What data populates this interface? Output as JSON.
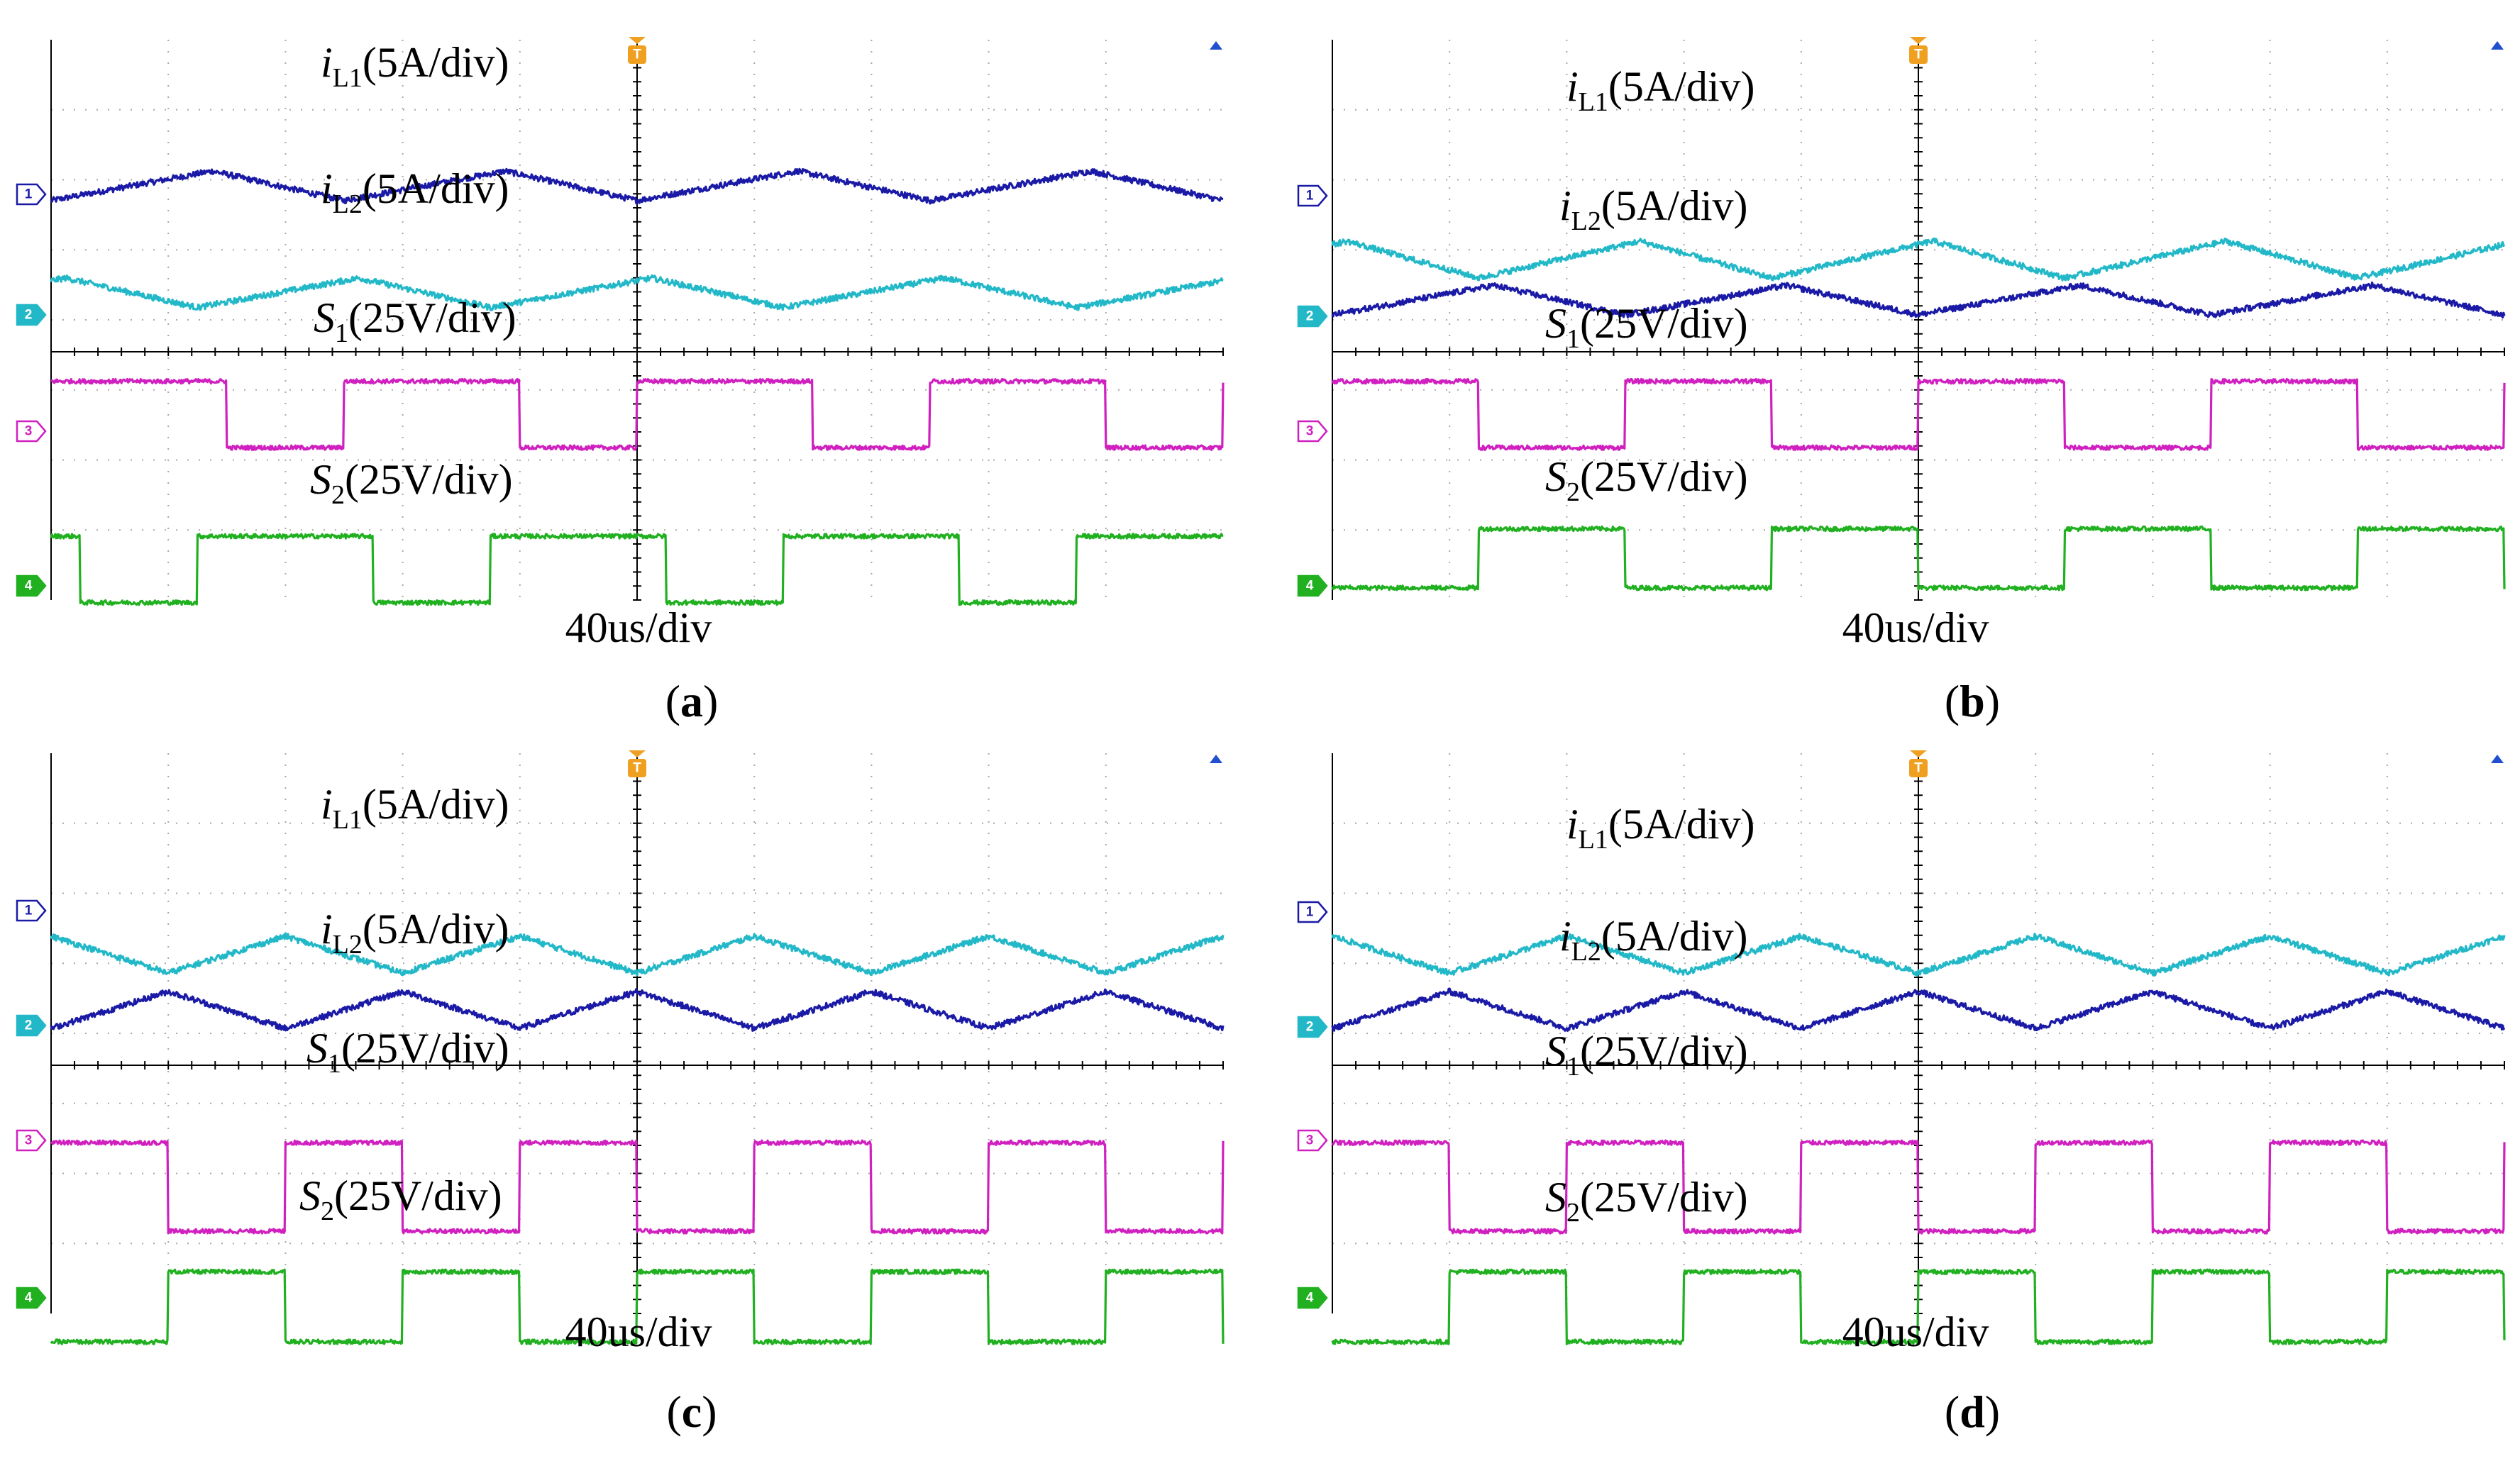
{
  "figure_labels": [
    "(a)",
    "(b)",
    "(c)",
    "(d)"
  ],
  "colors": {
    "ch1": "#1a1aa6",
    "ch2": "#22b8c8",
    "ch3": "#d020c0",
    "ch4": "#20b020",
    "grid": "#a8a8a8",
    "frame": "#000000",
    "trigger": "#f0a020",
    "marker": "#2050d0"
  },
  "icons": {
    "trigger": "trigger-marker-icon",
    "marker": "time-marker-icon"
  },
  "chart_data": [
    {
      "type": "line",
      "panel": "a",
      "title": "(a)",
      "xlabel": "40us/div",
      "time_per_div_us": 40,
      "xlim": [
        0,
        400
      ],
      "grid": true,
      "channel_badges": [
        "1",
        "2",
        "3",
        "4"
      ],
      "series": [
        {
          "channel": 1,
          "label_main": "i",
          "label_sub": "L1",
          "label_tail": "(5A/div)",
          "waveform": "triangle",
          "period_us": 100,
          "duty": 0.55,
          "baseline_div": 4.5,
          "amplitude_div": 0.4,
          "phase": 0.0
        },
        {
          "channel": 2,
          "label_main": "i",
          "label_sub": "L2",
          "label_tail": "(5A/div)",
          "waveform": "triangle",
          "period_us": 100,
          "duty": 0.55,
          "baseline_div": 1.6,
          "amplitude_div": 0.4,
          "phase": 0.5
        },
        {
          "channel": 3,
          "label_main": "S",
          "label_sub": "1",
          "label_tail": "(25V/div)",
          "waveform": "square",
          "period_us": 100,
          "duty": 0.6,
          "low_div": -2.6,
          "high_div": -0.8,
          "phase": 0.0
        },
        {
          "channel": 4,
          "label_main": "S",
          "label_sub": "2",
          "label_tail": "(25V/div)",
          "waveform": "square",
          "period_us": 100,
          "duty": 0.6,
          "low_div": -6.8,
          "high_div": -5.0,
          "phase": 0.5
        }
      ]
    },
    {
      "type": "line",
      "panel": "b",
      "title": "(b)",
      "xlabel": "40us/div",
      "time_per_div_us": 40,
      "xlim": [
        0,
        400
      ],
      "grid": true,
      "channel_badges": [
        "1",
        "2",
        "3",
        "4"
      ],
      "series": [
        {
          "channel": 1,
          "label_main": "i",
          "label_sub": "L1",
          "label_tail": "(5A/div)",
          "waveform": "triangle",
          "period_us": 100,
          "duty": 0.55,
          "baseline_div": 1.4,
          "amplitude_div": 0.4,
          "phase": 0.0
        },
        {
          "channel": 2,
          "label_main": "i",
          "label_sub": "L2",
          "label_tail": "(5A/div)",
          "waveform": "triangle",
          "period_us": 100,
          "duty": 0.55,
          "baseline_div": 2.5,
          "amplitude_div": 0.5,
          "phase": 0.5
        },
        {
          "channel": 3,
          "label_main": "S",
          "label_sub": "1",
          "label_tail": "(25V/div)",
          "waveform": "square",
          "period_us": 100,
          "duty": 0.5,
          "low_div": -2.6,
          "high_div": -0.8,
          "phase": 0.0
        },
        {
          "channel": 4,
          "label_main": "S",
          "label_sub": "2",
          "label_tail": "(25V/div)",
          "waveform": "square",
          "period_us": 100,
          "duty": 0.5,
          "low_div": -6.4,
          "high_div": -4.8,
          "phase": 0.5
        }
      ]
    },
    {
      "type": "line",
      "panel": "c",
      "title": "(c)",
      "xlabel": "40us/div",
      "time_per_div_us": 40,
      "xlim": [
        0,
        400
      ],
      "grid": true,
      "channel_badges": [
        "1",
        "2",
        "3",
        "4"
      ],
      "series": [
        {
          "channel": 1,
          "label_main": "i",
          "label_sub": "L1",
          "label_tail": "(5A/div)",
          "waveform": "triangle",
          "period_us": 80,
          "duty": 0.5,
          "baseline_div": 1.5,
          "amplitude_div": 0.5,
          "phase": 0.0
        },
        {
          "channel": 2,
          "label_main": "i",
          "label_sub": "L2",
          "label_tail": "(5A/div)",
          "waveform": "triangle",
          "period_us": 80,
          "duty": 0.5,
          "baseline_div": 3.0,
          "amplitude_div": 0.5,
          "phase": 0.5
        },
        {
          "channel": 3,
          "label_main": "S",
          "label_sub": "1",
          "label_tail": "(25V/div)",
          "waveform": "square",
          "period_us": 80,
          "duty": 0.5,
          "low_div": -4.5,
          "high_div": -2.1,
          "phase": 0.0
        },
        {
          "channel": 4,
          "label_main": "S",
          "label_sub": "2",
          "label_tail": "(25V/div)",
          "waveform": "square",
          "period_us": 80,
          "duty": 0.5,
          "low_div": -7.5,
          "high_div": -5.6,
          "phase": 0.5
        }
      ]
    },
    {
      "type": "line",
      "panel": "d",
      "title": "(d)",
      "xlabel": "40us/div",
      "time_per_div_us": 40,
      "xlim": [
        0,
        400
      ],
      "grid": true,
      "channel_badges": [
        "1",
        "2",
        "3",
        "4"
      ],
      "series": [
        {
          "channel": 1,
          "label_main": "i",
          "label_sub": "L1",
          "label_tail": "(5A/div)",
          "waveform": "triangle",
          "period_us": 80,
          "duty": 0.5,
          "baseline_div": 1.5,
          "amplitude_div": 0.5,
          "phase": 0.0
        },
        {
          "channel": 2,
          "label_main": "i",
          "label_sub": "L2",
          "label_tail": "(5A/div)",
          "waveform": "triangle",
          "period_us": 80,
          "duty": 0.5,
          "baseline_div": 3.0,
          "amplitude_div": 0.5,
          "phase": 0.5
        },
        {
          "channel": 3,
          "label_main": "S",
          "label_sub": "1",
          "label_tail": "(25V/div)",
          "waveform": "square",
          "period_us": 80,
          "duty": 0.5,
          "low_div": -4.5,
          "high_div": -2.1,
          "phase": 0.0
        },
        {
          "channel": 4,
          "label_main": "S",
          "label_sub": "2",
          "label_tail": "(25V/div)",
          "waveform": "square",
          "period_us": 80,
          "duty": 0.5,
          "low_div": -7.5,
          "high_div": -5.6,
          "phase": 0.5
        }
      ]
    }
  ]
}
